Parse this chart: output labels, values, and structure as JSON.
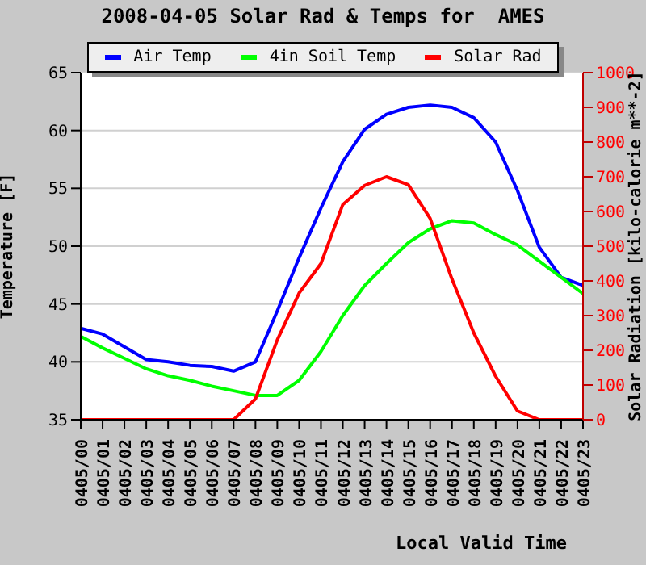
{
  "chart_data": {
    "type": "line",
    "title": "2008-04-05 Solar Rad & Temps for  AMES",
    "xlabel": "Local Valid Time",
    "ylabel": "Temperature [F]",
    "y2label": "Solar Radiation [kilo-calorie m**-2]",
    "categories": [
      "0405/00",
      "0405/01",
      "0405/02",
      "0405/03",
      "0405/04",
      "0405/05",
      "0405/06",
      "0405/07",
      "0405/08",
      "0405/09",
      "0405/10",
      "0405/11",
      "0405/12",
      "0405/13",
      "0405/14",
      "0405/15",
      "0405/16",
      "0405/17",
      "0405/18",
      "0405/19",
      "0405/20",
      "0405/21",
      "0405/22",
      "0405/23"
    ],
    "series": [
      {
        "name": "Air Temp",
        "color": "#0000ff",
        "values": [
          42.9,
          42.4,
          41.3,
          40.2,
          40.0,
          39.7,
          39.6,
          39.2,
          40.0,
          44.4,
          49.0,
          53.3,
          57.3,
          60.1,
          61.4,
          62.0,
          62.2,
          62.0,
          61.1,
          59.0,
          54.8,
          49.9,
          47.3,
          46.6
        ]
      },
      {
        "name": "4in Soil Temp",
        "color": "#00ff00",
        "values": [
          42.2,
          41.2,
          40.3,
          39.4,
          38.8,
          38.4,
          37.9,
          37.5,
          37.1,
          37.1,
          38.4,
          40.9,
          44.0,
          46.6,
          48.5,
          50.3,
          51.5,
          52.2,
          52.0,
          51.0,
          50.1,
          48.7,
          47.3,
          45.9
        ]
      },
      {
        "name": "Solar Rad",
        "color": "#ff0000",
        "axis": "y2",
        "values": [
          0,
          0,
          0,
          0,
          0,
          0,
          0,
          0,
          60,
          230,
          365,
          450,
          620,
          675,
          700,
          677,
          580,
          405,
          250,
          125,
          25,
          0,
          0,
          0
        ]
      }
    ],
    "ylim": [
      35,
      65
    ],
    "yticks": [
      35,
      40,
      45,
      50,
      55,
      60,
      65
    ],
    "y2lim": [
      0,
      1000
    ],
    "y2ticks": [
      0,
      100,
      200,
      300,
      400,
      500,
      600,
      700,
      800,
      900,
      1000
    ],
    "grid": "y",
    "legend": "top",
    "marker": "none"
  }
}
